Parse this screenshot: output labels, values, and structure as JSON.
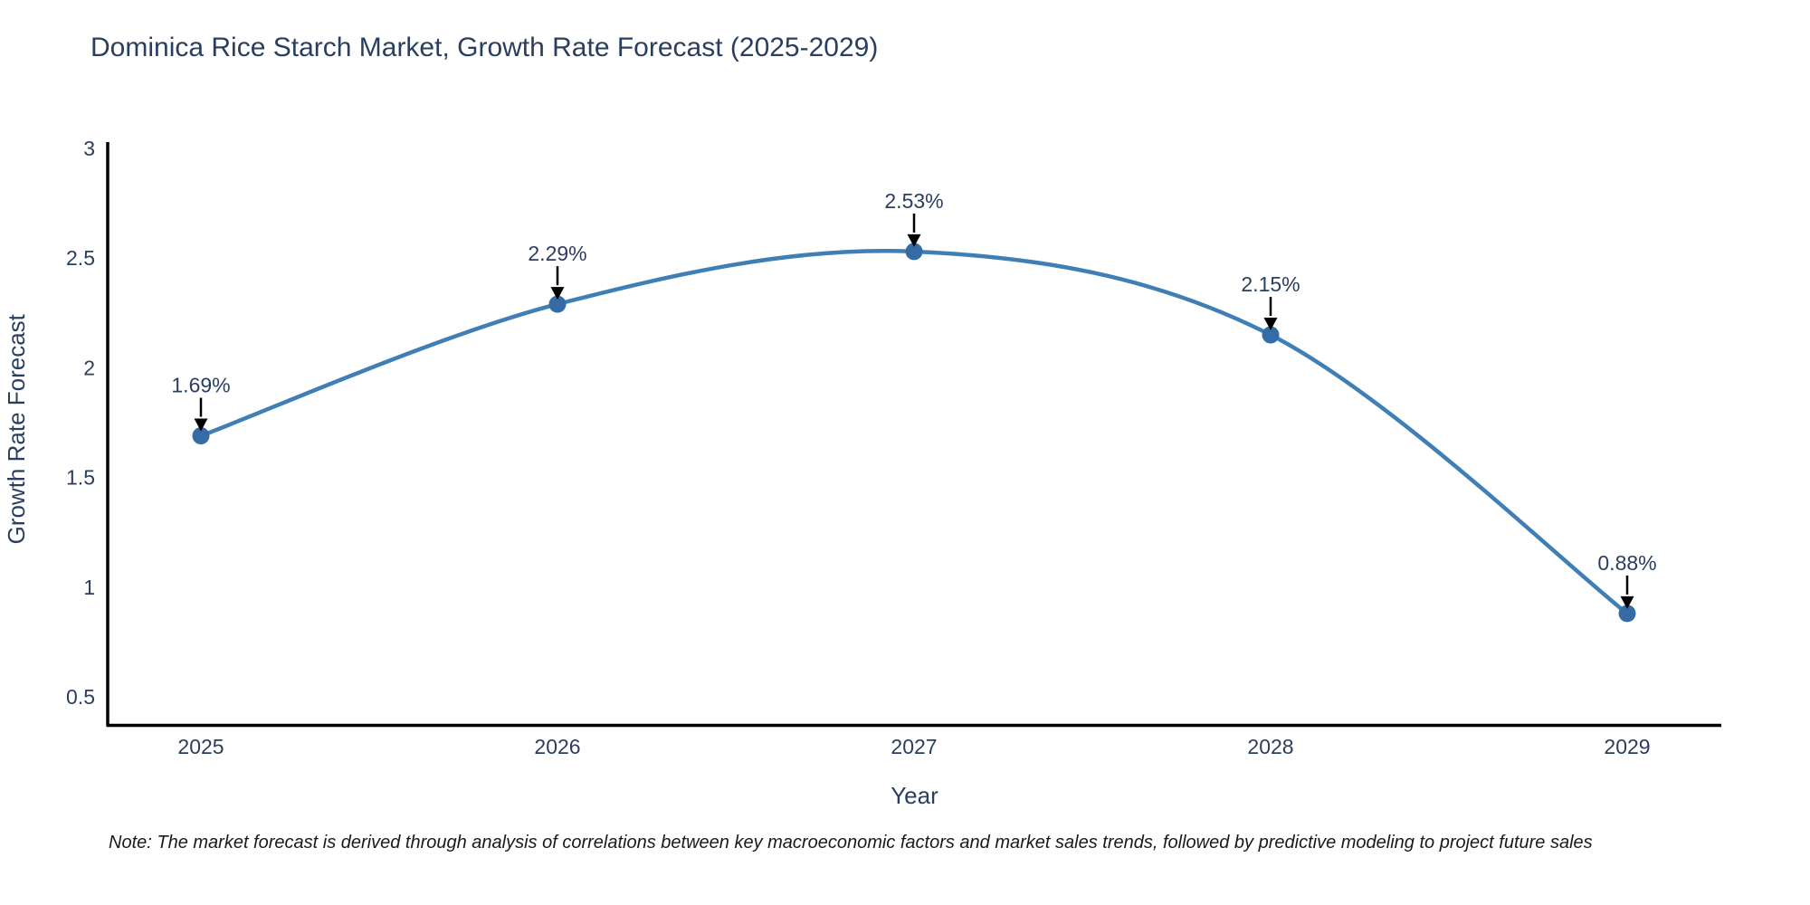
{
  "chart_data": {
    "type": "line",
    "title": "Dominica Rice Starch Market, Growth Rate Forecast (2025-2029)",
    "xlabel": "Year",
    "ylabel": "Growth Rate Forecast",
    "categories": [
      "2025",
      "2026",
      "2027",
      "2028",
      "2029"
    ],
    "series": [
      {
        "name": "Growth Rate Forecast",
        "values": [
          1.69,
          2.29,
          2.53,
          2.15,
          0.88
        ],
        "point_labels": [
          "1.69%",
          "2.29%",
          "2.53%",
          "2.15%",
          "0.88%"
        ]
      }
    ],
    "yticks": [
      0.5,
      1,
      1.5,
      2,
      2.5,
      3
    ],
    "ytick_labels": [
      "0.5",
      "1",
      "1.5",
      "2",
      "2.5",
      "3"
    ],
    "ylim": [
      0.37,
      3.03
    ],
    "grid": false,
    "legend": "none",
    "line_shape": "spline",
    "annotations": "value labels with black arrows above each point",
    "colors": {
      "line": "#3f7fb5",
      "marker": "#366ca6",
      "axis": "#000000",
      "text": "#2a3f5f",
      "annotation_text": "#2a3f5f",
      "annotation_arrow": "#000000",
      "background": "#ffffff"
    }
  },
  "note": {
    "text": "Note: The market forecast is derived through analysis of correlations between key macroeconomic factors and market sales trends, followed by predictive modeling to project future sales"
  }
}
